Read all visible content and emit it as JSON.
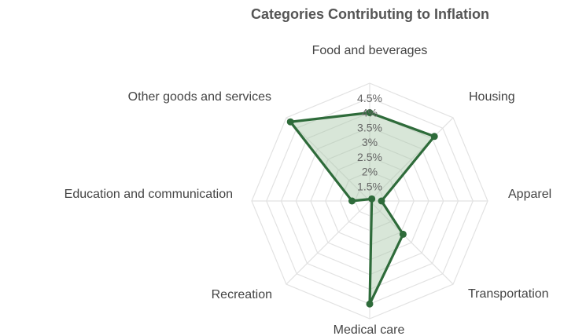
{
  "chart_data": {
    "type": "radar",
    "title": "Categories Contributing to Inflation",
    "categories": [
      "Food and beverages",
      "Housing",
      "Apparel",
      "Transportation",
      "Medical care",
      "Recreation",
      "Education and communication",
      "Other goods and services"
    ],
    "series": [
      {
        "values": [
          4.0,
          4.1,
          1.4,
          2.6,
          4.5,
          0.9,
          1.6,
          4.8
        ]
      }
    ],
    "ticks": [
      "1.5%",
      "2%",
      "2.5%",
      "3%",
      "3.5%",
      "4%",
      "4.5%"
    ],
    "tick_values": [
      1.5,
      2,
      2.5,
      3,
      3.5,
      4,
      4.5
    ],
    "r_min": 1.0,
    "r_max": 5.0,
    "grid": true,
    "legend": "none",
    "colors": {
      "line": "#2e6b3a",
      "fill": "#a8c8a8",
      "grid": "#e2e2e2",
      "label": "#444444",
      "tick": "#666666"
    }
  }
}
